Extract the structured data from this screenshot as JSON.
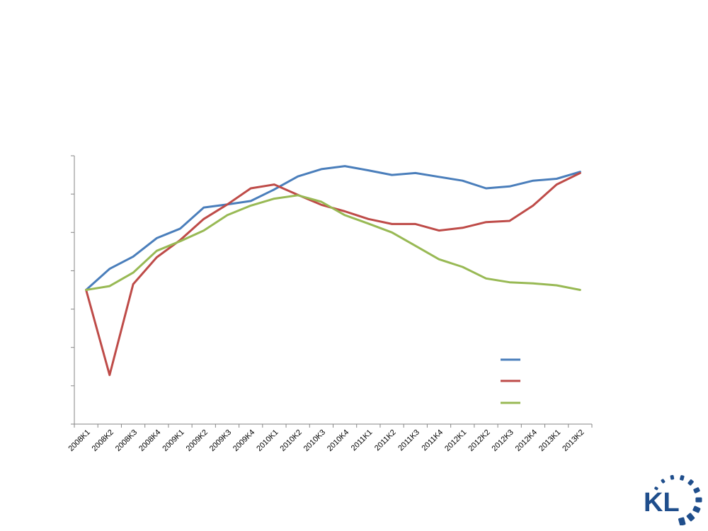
{
  "chart_data": {
    "type": "line",
    "title": "",
    "xlabel": "",
    "ylabel": "",
    "categories": [
      "2008K1",
      "2008K2",
      "2008K3",
      "2008K4",
      "2009K1",
      "2009K2",
      "2009K3",
      "2009K4",
      "2010K1",
      "2010K2",
      "2010K3",
      "2010K4",
      "2011K1",
      "2011K2",
      "2011K3",
      "2011K4",
      "2012K1",
      "2012K2",
      "2012K3",
      "2012K4",
      "2013K1",
      "2013K2"
    ],
    "ylim": [
      -3.5,
      3.5
    ],
    "grid": false,
    "y_tick_labels_shown": false,
    "legend_position": "bottom-right",
    "series": [
      {
        "color": "#4a7ebb",
        "values": [
          0.0,
          0.55,
          0.87,
          1.35,
          1.6,
          2.15,
          2.23,
          2.32,
          2.62,
          2.96,
          3.15,
          3.23,
          3.12,
          3.0,
          3.05,
          2.95,
          2.85,
          2.65,
          2.7,
          2.85,
          2.9,
          3.08
        ]
      },
      {
        "color": "#be4b48",
        "values": [
          0.0,
          -2.22,
          0.15,
          0.85,
          1.3,
          1.85,
          2.23,
          2.65,
          2.75,
          2.48,
          2.22,
          2.05,
          1.85,
          1.72,
          1.72,
          1.55,
          1.62,
          1.77,
          1.8,
          2.2,
          2.75,
          3.05
        ]
      },
      {
        "color": "#98b954",
        "values": [
          0.0,
          0.1,
          0.45,
          1.02,
          1.27,
          1.55,
          1.95,
          2.2,
          2.38,
          2.47,
          2.3,
          1.95,
          1.73,
          1.5,
          1.15,
          0.8,
          0.6,
          0.3,
          0.2,
          0.17,
          0.12,
          0.0
        ]
      }
    ]
  },
  "logo": {
    "text": "KL",
    "color": "#1f4e8c"
  }
}
